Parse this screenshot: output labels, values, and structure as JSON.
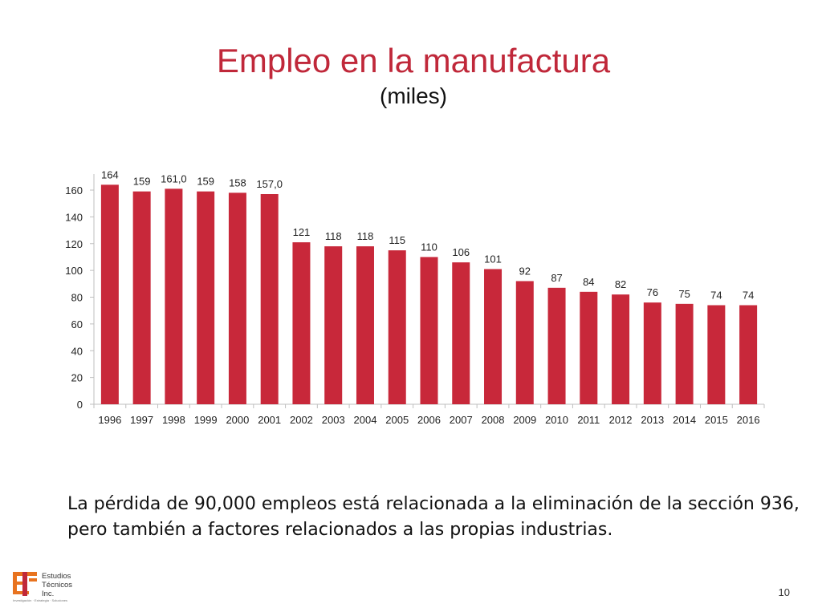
{
  "slide": {
    "title": "Empleo en la manufactura",
    "subtitle": "(miles)",
    "note": "La pérdida de 90,000 empleos está relacionada a la eliminación de la sección 936, pero también a factores relacionados a las propias industrias.",
    "page_number": "10"
  },
  "logo": {
    "lines": [
      "Estudios",
      "Técnicos",
      "Inc."
    ],
    "tagline": "Investigación · Estrategia · Soluciones"
  },
  "colors": {
    "bar": "#c8283a",
    "title": "#c0283a",
    "axis": "#bfbfbf"
  },
  "chart_data": {
    "type": "bar",
    "title": "",
    "xlabel": "",
    "ylabel": "",
    "categories": [
      "1996",
      "1997",
      "1998",
      "1999",
      "2000",
      "2001",
      "2002",
      "2003",
      "2004",
      "2005",
      "2006",
      "2007",
      "2008",
      "2009",
      "2010",
      "2011",
      "2012",
      "2013",
      "2014",
      "2015",
      "2016"
    ],
    "values": [
      164,
      159,
      161,
      159,
      158,
      157,
      121,
      118,
      118,
      115,
      110,
      106,
      101,
      92,
      87,
      84,
      82,
      76,
      75,
      74,
      74
    ],
    "labels": [
      "164",
      "159",
      "161,0",
      "159",
      "158",
      "157,0",
      "121",
      "118",
      "118",
      "115",
      "110",
      "106",
      "101",
      "92",
      "87",
      "84",
      "82",
      "76",
      "75",
      "74",
      "74"
    ],
    "ylim": [
      0,
      160
    ],
    "yticks": [
      0,
      20,
      40,
      60,
      80,
      100,
      120,
      140,
      160
    ],
    "grid": false,
    "legend": "none"
  }
}
